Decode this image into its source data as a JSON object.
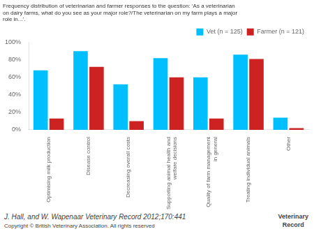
{
  "chart_data": {
    "type": "bar",
    "title": "Frequency distribution of veterinarian and farmer responses to the question: ‘As a veterinarian\non dairy farms, what do you see as your major role?/The veterinarian on my farm plays a major\nrole in...’.",
    "categories": [
      "Optimising milk production",
      "Disease control",
      "Decreasing overall costs",
      "Supporting animal health and\nwelfare decisions",
      "Quality of farm management\nin general",
      "Treating individual animals",
      "Other"
    ],
    "series": [
      {
        "name": "Vet (n = 125)",
        "color": "#00BFFF",
        "values": [
          68,
          90,
          52,
          82,
          60,
          86,
          14
        ]
      },
      {
        "name": "Farmer (n = 121)",
        "color": "#CC2222",
        "values": [
          13,
          72,
          10,
          60,
          13,
          81,
          2
        ]
      }
    ],
    "ylim": [
      0,
      100
    ],
    "yticks": [
      {
        "value": 0,
        "label": "0%"
      },
      {
        "value": 20,
        "label": "20%"
      },
      {
        "value": 40,
        "label": "40%"
      },
      {
        "value": 60,
        "label": "60%"
      },
      {
        "value": 80,
        "label": "80%"
      },
      {
        "value": 100,
        "label": "100%"
      }
    ],
    "grid": false,
    "legend": "upper right",
    "annotations": [
      "J. Hall, and W. Wapenaar Veterinary Record 2012;170:441",
      "Copyright © British Veterinary Association. All rights reserved",
      "Veterinary",
      "Record"
    ]
  }
}
